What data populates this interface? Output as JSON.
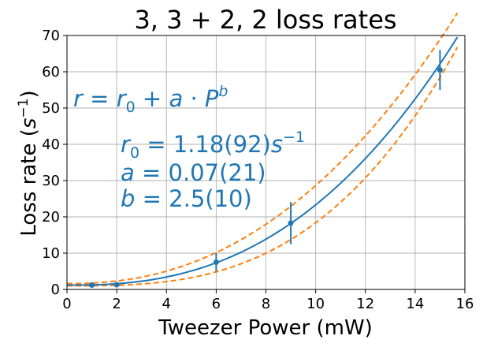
{
  "chart_data": {
    "type": "scatter",
    "title": "3, 3 + 2, 2 loss rates",
    "xlabel": "Tweezer Power (mW)",
    "ylabel_main": "Loss rate (",
    "ylabel_sym": "s",
    "ylabel_exp": "−1",
    "ylabel_end": ")",
    "xlim": [
      0,
      16
    ],
    "ylim": [
      0,
      70
    ],
    "x_ticks": [
      0,
      2,
      4,
      6,
      8,
      10,
      12,
      14,
      16
    ],
    "y_ticks": [
      0,
      10,
      20,
      30,
      40,
      50,
      60,
      70
    ],
    "grid": true,
    "points": [
      {
        "x": 1.0,
        "y": 1.2,
        "yerr_low": 0.4,
        "yerr_high": 0.4
      },
      {
        "x": 2.0,
        "y": 1.3,
        "yerr_low": 0.4,
        "yerr_high": 0.4
      },
      {
        "x": 6.0,
        "y": 7.5,
        "yerr_low": 2.5,
        "yerr_high": 2.5
      },
      {
        "x": 9.0,
        "y": 18.3,
        "yerr_low": 5.8,
        "yerr_high": 5.8
      },
      {
        "x": 15.0,
        "y": 60.5,
        "yerr_low": 5.5,
        "yerr_high": 5.5
      }
    ],
    "fit": {
      "r0": 1.18,
      "a": 0.07,
      "b": 2.5,
      "x_range": [
        0,
        15.7
      ]
    },
    "bounds": {
      "upper": {
        "r0": 1.6,
        "a": 0.152,
        "b": 2.25,
        "x_range": [
          0,
          15.7
        ]
      },
      "lower": {
        "r0": 1.0,
        "a": 0.0195,
        "b": 2.95,
        "x_range": [
          0,
          15.7
        ]
      }
    },
    "colors": {
      "data": "#1f77b4",
      "bounds": "#ff7f0e",
      "grid": "#b0b0b0"
    },
    "annotations": {
      "model": {
        "r": "r",
        "eq": " = ",
        "r0_base": "r",
        "r0_sub": "0",
        "plus": " + ",
        "a": "a",
        "dot": " · ",
        "P": "P",
        "P_exp": "b"
      },
      "r0": {
        "base": "r",
        "sub": "0",
        "value": " = 1.18(92)",
        "unit": "s",
        "unit_exp": "−1"
      },
      "a": {
        "sym": "a",
        "value": " = 0.07(21)"
      },
      "b": {
        "sym": "b",
        "value": " = 2.5(10)"
      }
    }
  }
}
